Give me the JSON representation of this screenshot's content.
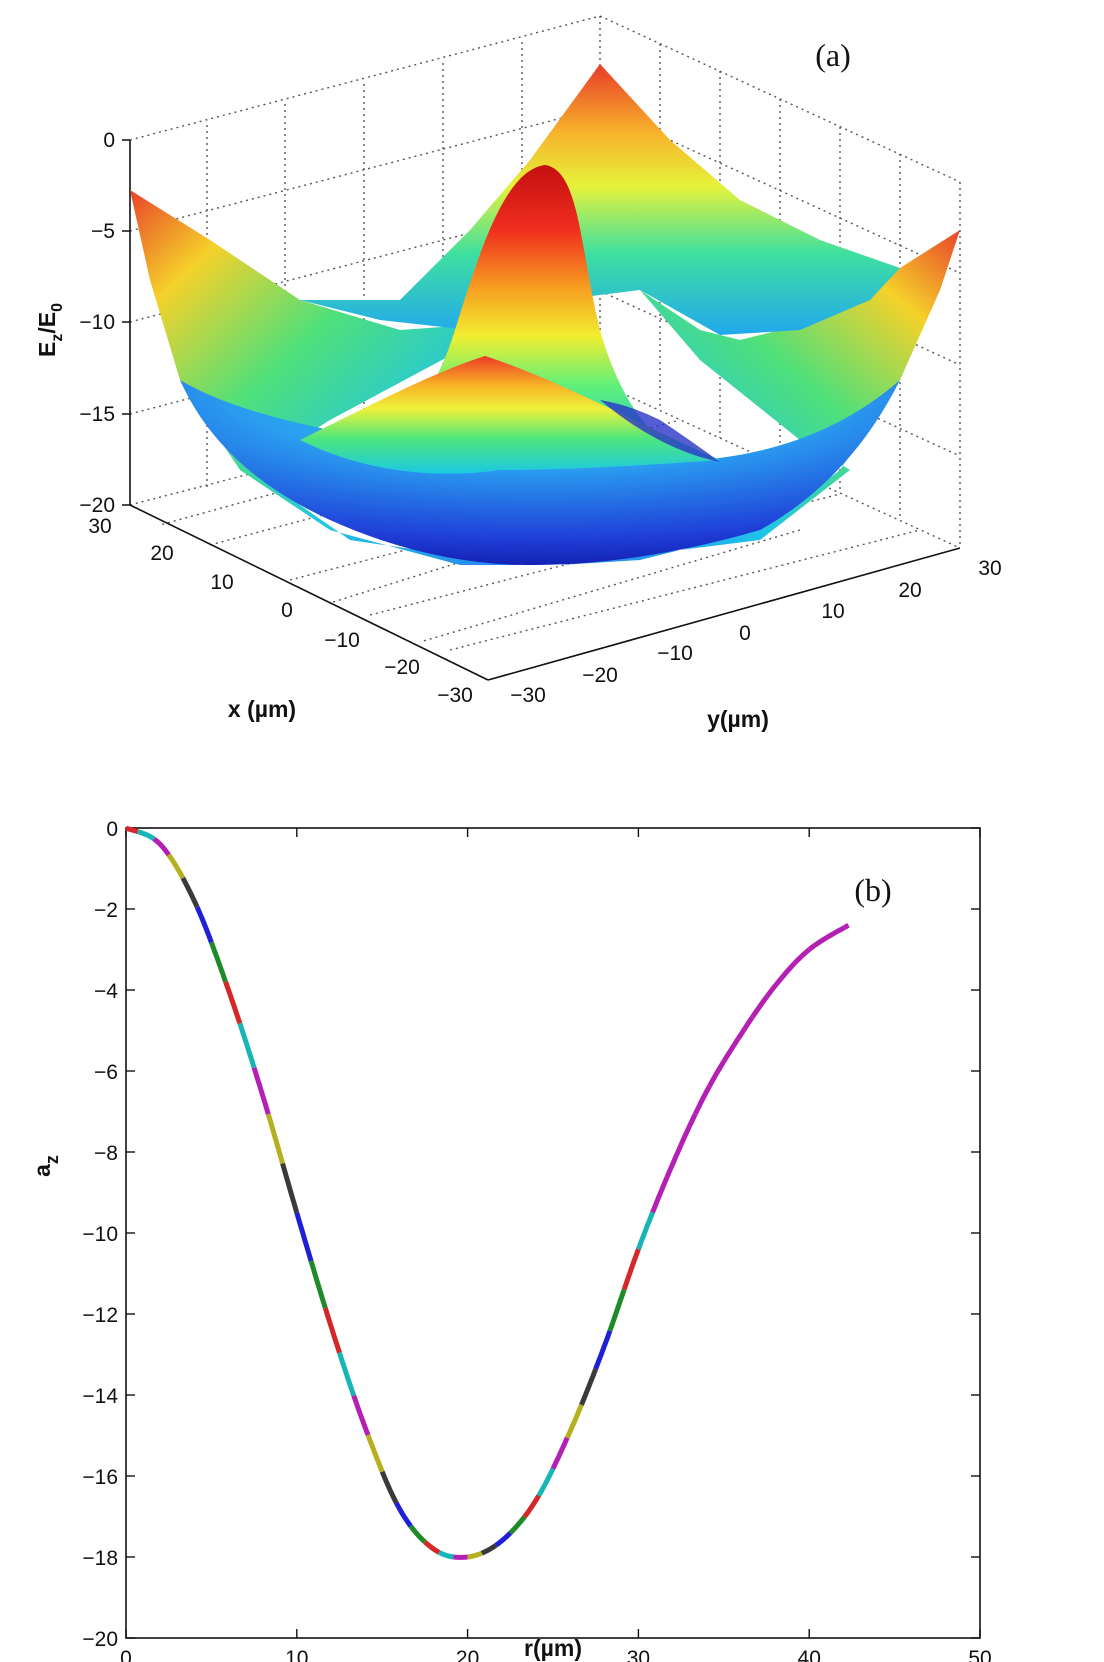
{
  "chart_data": [
    {
      "type": "surface",
      "panel_label": "(a)",
      "xlabel": "x (µm)",
      "ylabel": "y(µm)",
      "zlabel_main": "E",
      "zlabel_sub1": "z",
      "zlabel_sep": "/E",
      "zlabel_sub2": "0",
      "xlim": [
        -30,
        30
      ],
      "ylim": [
        -30,
        30
      ],
      "zlim": [
        -20,
        0
      ],
      "x_ticks": [
        "30",
        "20",
        "10",
        "0",
        "−10",
        "−20",
        "−30"
      ],
      "y_ticks": [
        "−30",
        "−20",
        "−10",
        "0",
        "10",
        "20",
        "30"
      ],
      "z_ticks": [
        "0",
        "−5",
        "−10",
        "−15",
        "−20"
      ],
      "grid": true,
      "colormap": "jet"
    },
    {
      "type": "line",
      "panel_label": "(b)",
      "xlabel": "r(µm)",
      "ylabel_main": "a",
      "ylabel_sub": "z",
      "xlim": [
        0,
        50
      ],
      "ylim": [
        -20,
        0
      ],
      "x_ticks": [
        "0",
        "10",
        "20",
        "30",
        "40",
        "50"
      ],
      "y_ticks": [
        "0",
        "−2",
        "−4",
        "−6",
        "−8",
        "−10",
        "−12",
        "−14",
        "−16",
        "−18",
        "−20"
      ],
      "series": [
        {
          "x": [
            0,
            2,
            4,
            6,
            8,
            10,
            12,
            14,
            16,
            18,
            20,
            22,
            24,
            26,
            28,
            30,
            32,
            34,
            36,
            38,
            40,
            42.3
          ],
          "y": [
            0,
            -0.4,
            -1.8,
            -4.0,
            -6.6,
            -9.5,
            -12.3,
            -14.8,
            -16.8,
            -17.8,
            -18.0,
            -17.6,
            -16.6,
            -14.9,
            -12.8,
            -10.4,
            -8.3,
            -6.5,
            -5.1,
            -3.9,
            -3.0,
            -2.4
          ]
        }
      ],
      "segment_colors": [
        "#d62728",
        "#17b5b5",
        "#b41fb4",
        "#b5b020",
        "#3a3a3a",
        "#1f1fd6",
        "#1f8a2a"
      ],
      "grid": false
    }
  ]
}
